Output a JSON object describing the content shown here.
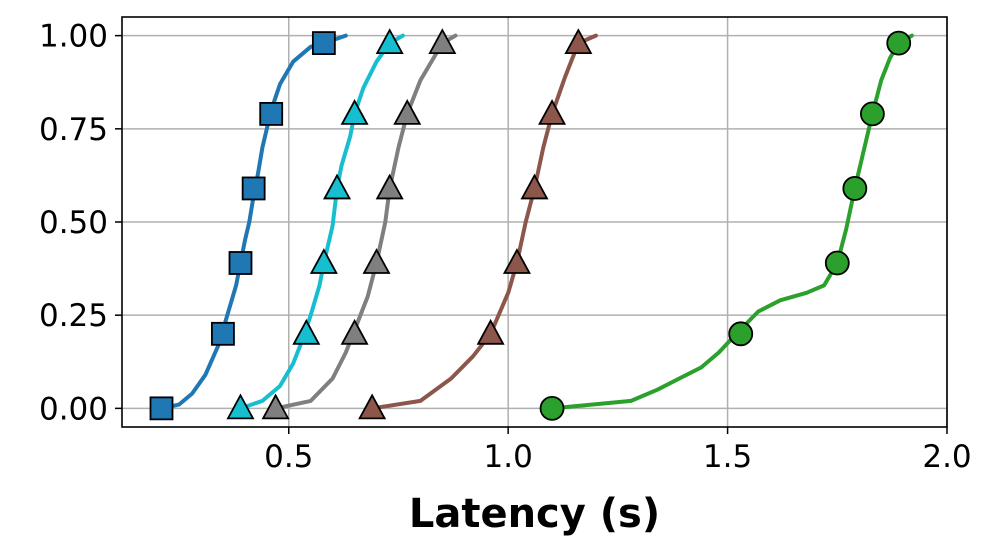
{
  "chart_data": {
    "type": "line",
    "title": "",
    "xlabel": "Latency (s)",
    "ylabel": "",
    "xlim": [
      0.12,
      2.0
    ],
    "ylim": [
      -0.05,
      1.05
    ],
    "xticks": [
      0.5,
      1.0,
      1.5,
      2.0
    ],
    "xtick_labels": [
      "0.5",
      "1.0",
      "1.5",
      "2.0"
    ],
    "yticks": [
      0.0,
      0.25,
      0.5,
      0.75,
      1.0
    ],
    "ytick_labels": [
      "0.00",
      "0.25",
      "0.50",
      "0.75",
      "1.00"
    ],
    "grid": true,
    "legend": false,
    "series": [
      {
        "color": "#1f77b4",
        "marker": "square",
        "marker_color": "#1f77b4",
        "line": {
          "x": [
            0.21,
            0.25,
            0.28,
            0.31,
            0.34,
            0.36,
            0.38,
            0.39,
            0.4,
            0.41,
            0.42,
            0.43,
            0.44,
            0.46,
            0.48,
            0.51,
            0.55,
            0.58,
            0.63
          ],
          "y": [
            0.0,
            0.01,
            0.04,
            0.09,
            0.17,
            0.25,
            0.33,
            0.39,
            0.45,
            0.5,
            0.57,
            0.63,
            0.7,
            0.8,
            0.87,
            0.93,
            0.97,
            0.98,
            1.0
          ]
        },
        "markers": {
          "x": [
            0.21,
            0.35,
            0.39,
            0.42,
            0.46,
            0.58
          ],
          "y": [
            0.0,
            0.2,
            0.39,
            0.59,
            0.79,
            0.98
          ]
        }
      },
      {
        "color": "#17becf",
        "marker": "triangle",
        "marker_color": "#17becf",
        "line": {
          "x": [
            0.39,
            0.44,
            0.48,
            0.51,
            0.53,
            0.55,
            0.57,
            0.58,
            0.6,
            0.61,
            0.62,
            0.64,
            0.65,
            0.67,
            0.7,
            0.73,
            0.76
          ],
          "y": [
            0.0,
            0.02,
            0.06,
            0.12,
            0.18,
            0.25,
            0.33,
            0.39,
            0.49,
            0.59,
            0.65,
            0.73,
            0.79,
            0.86,
            0.93,
            0.98,
            1.0
          ]
        },
        "markers": {
          "x": [
            0.39,
            0.54,
            0.58,
            0.61,
            0.65,
            0.73
          ],
          "y": [
            0.0,
            0.2,
            0.39,
            0.59,
            0.79,
            0.98
          ]
        }
      },
      {
        "color": "#7f7f7f",
        "marker": "triangle",
        "marker_color": "#7f7f7f",
        "line": {
          "x": [
            0.47,
            0.55,
            0.6,
            0.63,
            0.65,
            0.68,
            0.7,
            0.72,
            0.73,
            0.75,
            0.77,
            0.8,
            0.83,
            0.85,
            0.88
          ],
          "y": [
            0.0,
            0.02,
            0.08,
            0.15,
            0.21,
            0.3,
            0.39,
            0.5,
            0.59,
            0.7,
            0.79,
            0.88,
            0.94,
            0.98,
            1.0
          ]
        },
        "markers": {
          "x": [
            0.47,
            0.65,
            0.7,
            0.73,
            0.77,
            0.85
          ],
          "y": [
            0.0,
            0.2,
            0.39,
            0.59,
            0.79,
            0.98
          ]
        }
      },
      {
        "color": "#8c564b",
        "marker": "triangle",
        "marker_color": "#8c564b",
        "line": {
          "x": [
            0.69,
            0.8,
            0.87,
            0.92,
            0.96,
            1.0,
            1.02,
            1.04,
            1.06,
            1.08,
            1.1,
            1.13,
            1.16,
            1.2
          ],
          "y": [
            0.0,
            0.02,
            0.08,
            0.14,
            0.2,
            0.31,
            0.39,
            0.5,
            0.59,
            0.7,
            0.79,
            0.89,
            0.98,
            1.0
          ]
        },
        "markers": {
          "x": [
            0.69,
            0.96,
            1.02,
            1.06,
            1.1,
            1.16
          ],
          "y": [
            0.0,
            0.2,
            0.39,
            0.59,
            0.79,
            0.98
          ]
        }
      },
      {
        "color": "#2ca02c",
        "marker": "circle",
        "marker_color": "#2ca02c",
        "line": {
          "x": [
            1.1,
            1.28,
            1.34,
            1.39,
            1.44,
            1.48,
            1.52,
            1.57,
            1.62,
            1.68,
            1.72,
            1.75,
            1.77,
            1.79,
            1.81,
            1.83,
            1.85,
            1.87,
            1.89,
            1.92
          ],
          "y": [
            0.0,
            0.02,
            0.05,
            0.08,
            0.11,
            0.15,
            0.2,
            0.26,
            0.29,
            0.31,
            0.33,
            0.39,
            0.48,
            0.59,
            0.69,
            0.79,
            0.88,
            0.94,
            0.98,
            1.0
          ]
        },
        "markers": {
          "x": [
            1.1,
            1.53,
            1.75,
            1.79,
            1.83,
            1.89
          ],
          "y": [
            0.0,
            0.2,
            0.39,
            0.59,
            0.79,
            0.98
          ]
        }
      }
    ]
  }
}
